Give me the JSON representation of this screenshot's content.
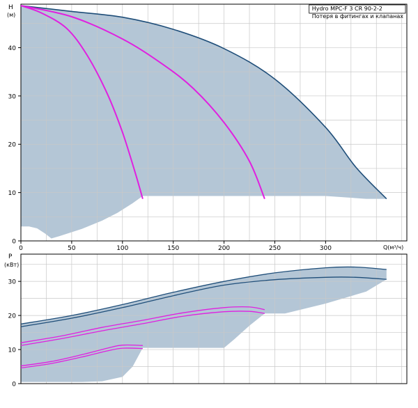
{
  "chart_data": [
    {
      "type": "line",
      "name": "head",
      "legend_lines": [
        "Hydro MPC-F 3 CR 90-2-2",
        "Потеря в фитингах и клапанах"
      ],
      "ylabel": "H",
      "yunit": "(м)",
      "xlabel": "Q(м³/ч)",
      "xlim": [
        0,
        380
      ],
      "ylim": [
        0,
        49
      ],
      "xticks": [
        0,
        50,
        100,
        150,
        200,
        250,
        300
      ],
      "yticks": [
        0,
        10,
        20,
        30,
        40
      ],
      "grid": true,
      "colors": {
        "area": "#b4c6d6",
        "total": "#1f4e79",
        "partial": "#e020e0",
        "grid": "#c8c8c8",
        "axis": "#000000"
      },
      "series": [
        {
          "values": [
            [
              0,
              48.7
            ],
            [
              50,
              47.5
            ],
            [
              100,
              46.3
            ],
            [
              150,
              43.8
            ],
            [
              200,
              39.8
            ],
            [
              250,
              33.5
            ],
            [
              300,
              23.5
            ],
            [
              330,
              15.2
            ],
            [
              360,
              8.7
            ]
          ]
        },
        {
          "values": [
            [
              0,
              48.7
            ],
            [
              20,
              47.2
            ],
            [
              45,
              44.0
            ],
            [
              65,
              38.5
            ],
            [
              85,
              30.5
            ],
            [
              100,
              22.5
            ],
            [
              112,
              14.5
            ],
            [
              120,
              8.7
            ]
          ]
        },
        {
          "values": [
            [
              0,
              48.7
            ],
            [
              50,
              46.4
            ],
            [
              100,
              41.8
            ],
            [
              140,
              36.5
            ],
            [
              170,
              31.5
            ],
            [
              200,
              24.5
            ],
            [
              225,
              16.5
            ],
            [
              240,
              8.7
            ]
          ]
        }
      ],
      "area_lower": [
        [
          0,
          3.0
        ],
        [
          8,
          3.0
        ],
        [
          16,
          2.6
        ],
        [
          24,
          1.5
        ],
        [
          30,
          0.5
        ],
        [
          38,
          1.0
        ],
        [
          60,
          2.5
        ],
        [
          80,
          4.2
        ],
        [
          95,
          5.8
        ],
        [
          110,
          7.8
        ],
        [
          120,
          9.3
        ],
        [
          130,
          9.3
        ],
        [
          200,
          9.3
        ],
        [
          260,
          9.3
        ],
        [
          300,
          9.3
        ],
        [
          340,
          8.7
        ],
        [
          360,
          8.7
        ]
      ]
    },
    {
      "type": "line",
      "name": "power",
      "ylabel": "P",
      "yunit": "(кВт)",
      "xlim": [
        0,
        380
      ],
      "ylim": [
        0,
        38
      ],
      "yticks": [
        0,
        10,
        20,
        30
      ],
      "grid": true,
      "colors": {
        "area": "#b4c6d6",
        "total": "#1f4e79",
        "partial": "#e020e0"
      },
      "series": [
        {
          "values": [
            [
              0,
              17.5
            ],
            [
              50,
              20.0
            ],
            [
              100,
              23.2
            ],
            [
              150,
              26.8
            ],
            [
              200,
              30.0
            ],
            [
              250,
              32.5
            ],
            [
              300,
              34.0
            ],
            [
              330,
              34.2
            ],
            [
              360,
              33.5
            ]
          ]
        },
        {
          "values": [
            [
              0,
              16.7
            ],
            [
              50,
              19.2
            ],
            [
              100,
              22.3
            ],
            [
              150,
              25.8
            ],
            [
              200,
              28.9
            ],
            [
              250,
              30.5
            ],
            [
              300,
              31.2
            ],
            [
              330,
              31.2
            ],
            [
              360,
              30.6
            ]
          ]
        },
        {
          "values": [
            [
              0,
              12.0
            ],
            [
              40,
              14.0
            ],
            [
              80,
              16.5
            ],
            [
              120,
              18.6
            ],
            [
              160,
              20.8
            ],
            [
              200,
              22.3
            ],
            [
              225,
              22.5
            ],
            [
              240,
              21.7
            ]
          ]
        },
        {
          "values": [
            [
              0,
              11.2
            ],
            [
              40,
              13.2
            ],
            [
              80,
              15.5
            ],
            [
              120,
              17.6
            ],
            [
              160,
              19.8
            ],
            [
              200,
              21.1
            ],
            [
              225,
              21.2
            ],
            [
              240,
              20.6
            ]
          ]
        },
        {
          "values": [
            [
              0,
              5.2
            ],
            [
              30,
              6.5
            ],
            [
              60,
              8.5
            ],
            [
              85,
              10.4
            ],
            [
              100,
              11.3
            ],
            [
              120,
              11.2
            ]
          ]
        },
        {
          "values": [
            [
              0,
              4.6
            ],
            [
              30,
              5.9
            ],
            [
              60,
              7.8
            ],
            [
              85,
              9.6
            ],
            [
              100,
              10.4
            ],
            [
              120,
              10.3
            ]
          ]
        }
      ],
      "area_lower": [
        [
          0,
          0.5
        ],
        [
          20,
          0.5
        ],
        [
          40,
          0.5
        ],
        [
          60,
          0.5
        ],
        [
          80,
          0.7
        ],
        [
          100,
          2.0
        ],
        [
          110,
          5.0
        ],
        [
          120,
          10.5
        ],
        [
          200,
          10.5
        ],
        [
          210,
          13.0
        ],
        [
          225,
          17.0
        ],
        [
          240,
          20.6
        ],
        [
          260,
          20.6
        ],
        [
          300,
          23.5
        ],
        [
          340,
          27.0
        ],
        [
          360,
          30.6
        ]
      ]
    }
  ]
}
